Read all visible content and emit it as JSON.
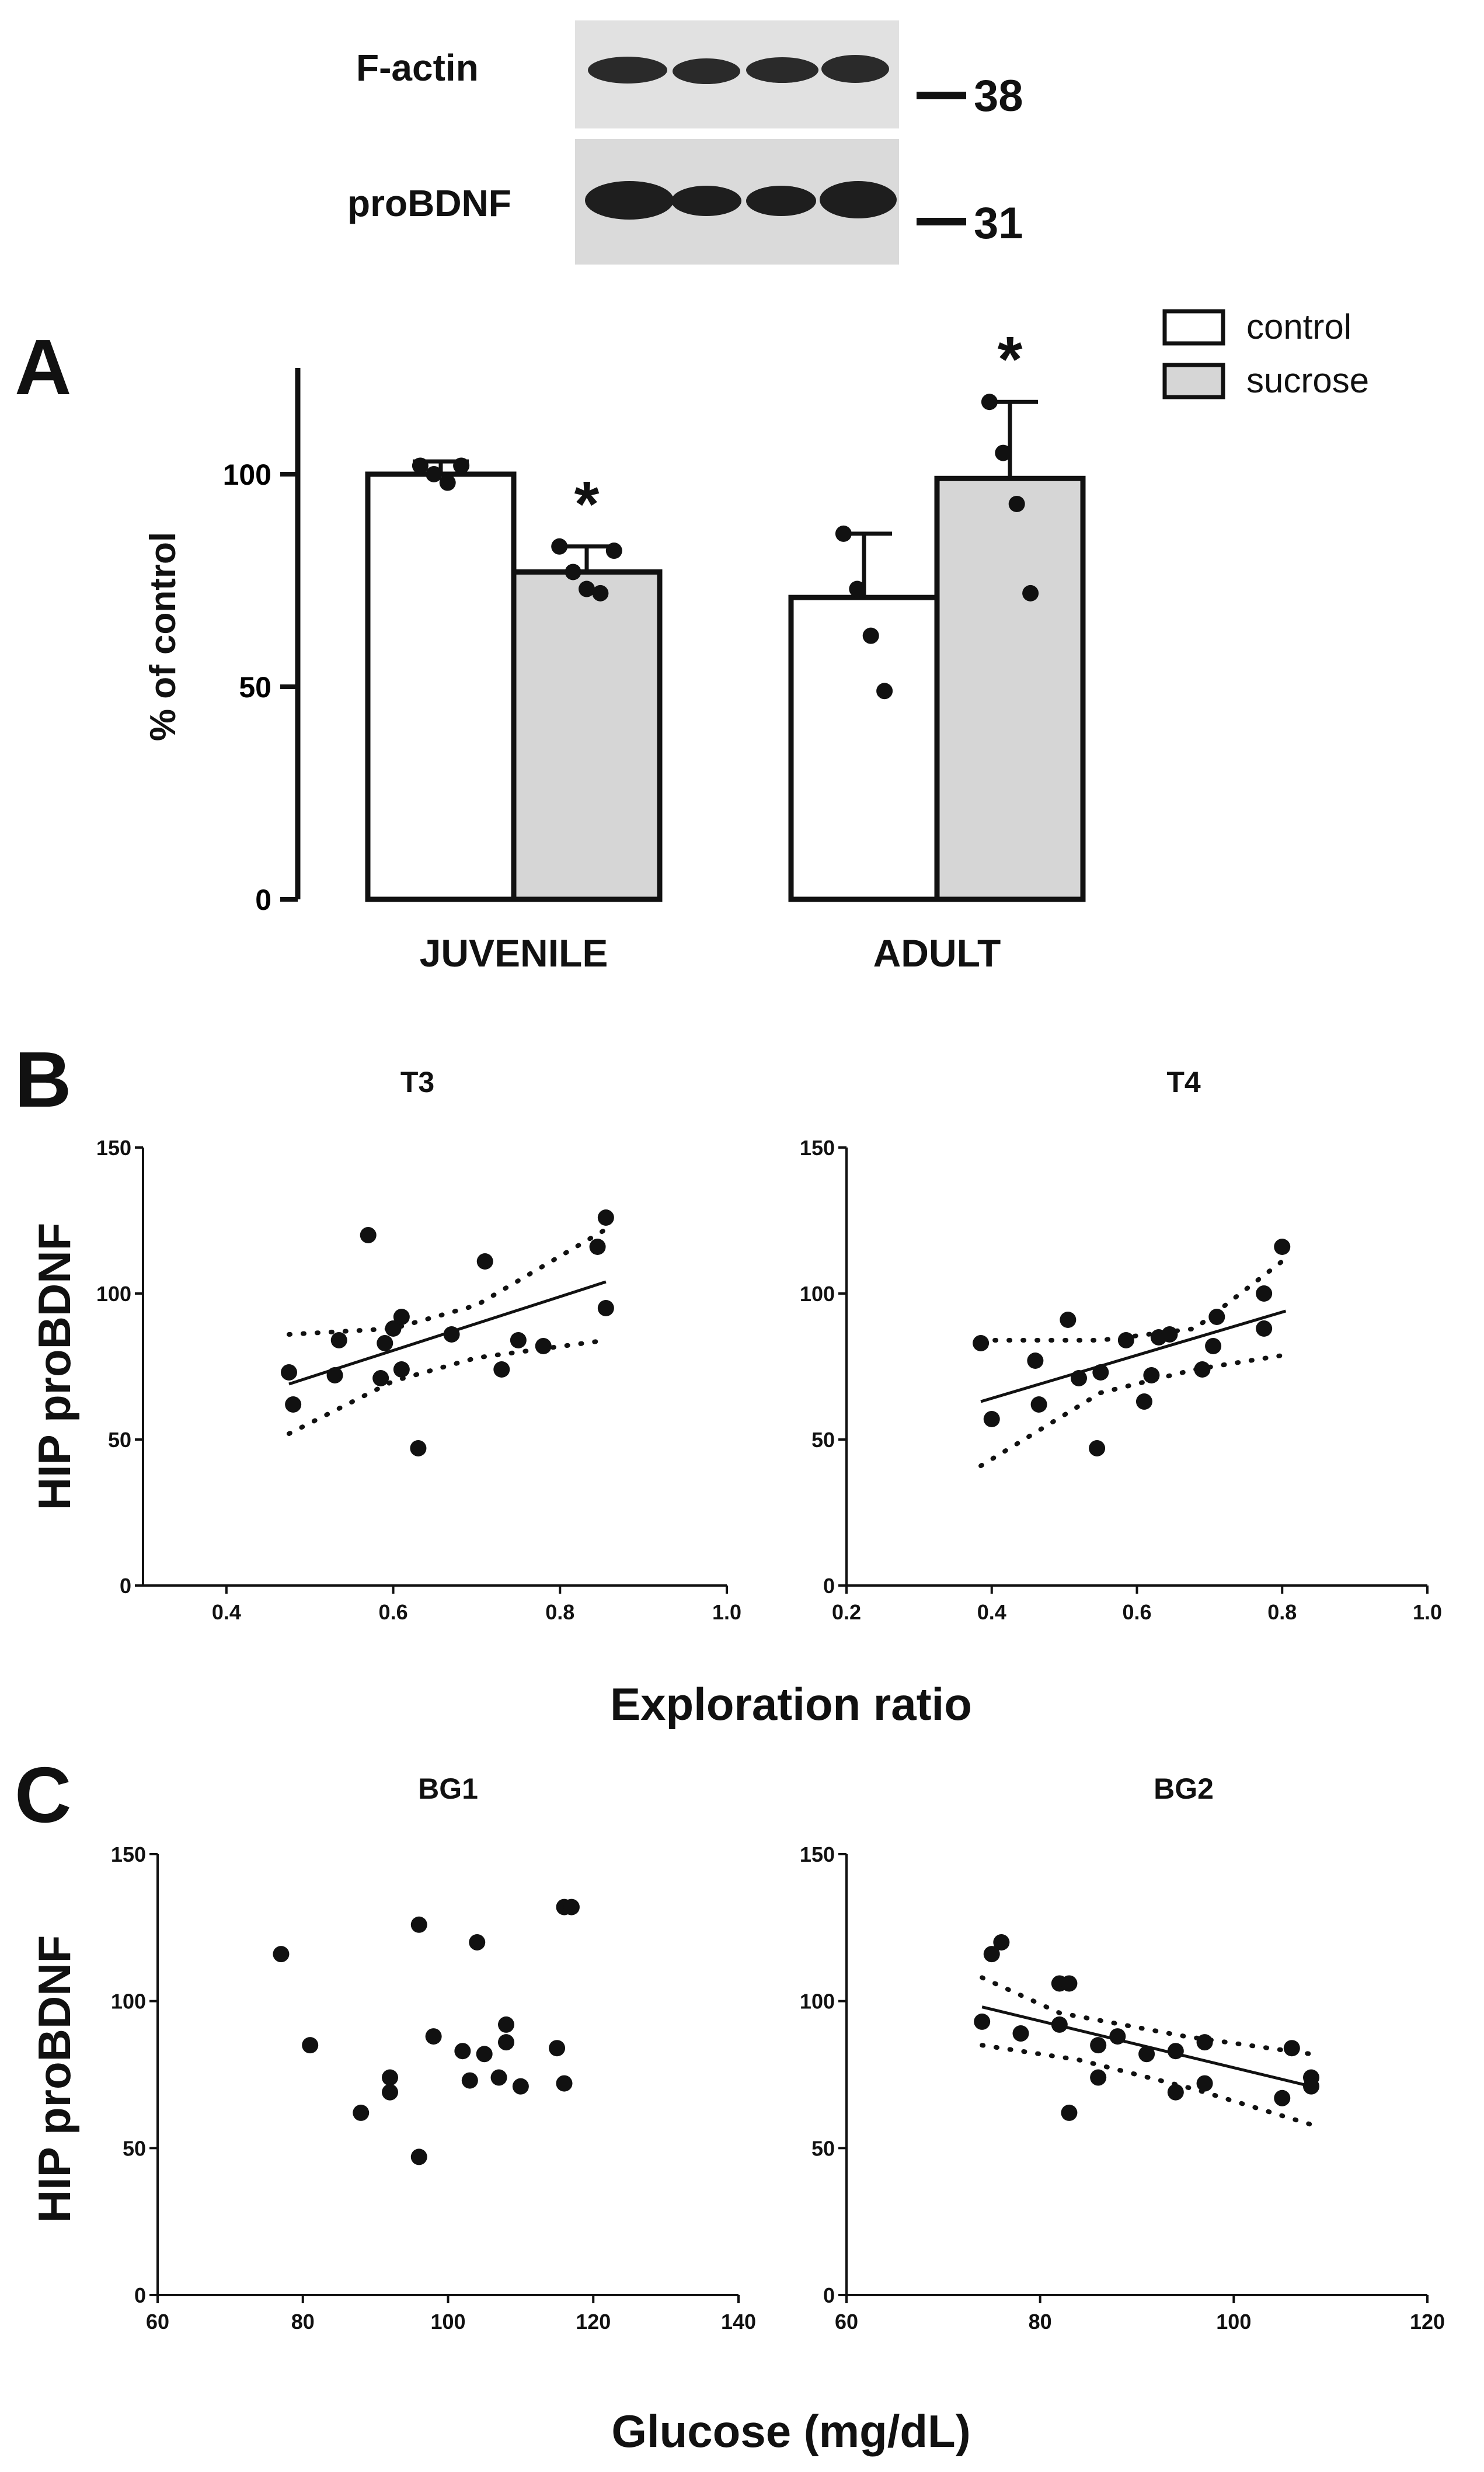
{
  "blot": {
    "bands": [
      {
        "name": "F-actin",
        "marker": "38"
      },
      {
        "name": "proBDNF",
        "marker": "31"
      }
    ]
  },
  "panelA": {
    "letter": "A",
    "ylabel": "% of control",
    "ylim": [
      0,
      125
    ],
    "yticks": [
      "0",
      "50",
      "100"
    ],
    "legend": [
      {
        "label": "control",
        "color": "#ffffff"
      },
      {
        "label": "sucrose",
        "color": "#d6d6d6"
      }
    ],
    "sig_marker": "*"
  },
  "panelB": {
    "letter": "B",
    "ylabel": "HIP proBDNF",
    "xlabel": "Exploration ratio"
  },
  "panelC": {
    "letter": "C",
    "ylabel": "HIP proBDNF",
    "xlabel": "Glucose (mg/dL)"
  },
  "chart_data": [
    {
      "id": "A",
      "type": "bar",
      "title": "",
      "ylabel": "% of control",
      "ylim": [
        0,
        125
      ],
      "categories": [
        "JUVENILE",
        "ADULT"
      ],
      "series": [
        {
          "name": "control",
          "values": [
            100,
            71
          ],
          "errors": [
            3,
            15
          ],
          "points": [
            [
              102,
              100,
              98,
              102
            ],
            [
              86,
              73,
              62,
              49
            ]
          ]
        },
        {
          "name": "sucrose",
          "values": [
            77,
            99
          ],
          "errors": [
            6,
            18
          ],
          "points": [
            [
              83,
              77,
              73,
              72,
              82
            ],
            [
              117,
              105,
              93,
              72
            ]
          ]
        }
      ],
      "significant": [
        false,
        true,
        false,
        true
      ]
    },
    {
      "id": "B-T3",
      "type": "scatter",
      "title": "T3",
      "xlabel": "Exploration ratio",
      "ylabel": "HIP proBDNF",
      "xlim": [
        0.3,
        1.0
      ],
      "ylim": [
        0,
        150
      ],
      "xticks": [
        "0.4",
        "0.6",
        "0.8",
        "1.0"
      ],
      "yticks": [
        "0",
        "50",
        "100",
        "150"
      ],
      "x": [
        0.475,
        0.48,
        0.53,
        0.535,
        0.57,
        0.585,
        0.59,
        0.6,
        0.61,
        0.61,
        0.63,
        0.67,
        0.71,
        0.73,
        0.75,
        0.78,
        0.845,
        0.855,
        0.855
      ],
      "y": [
        73,
        62,
        72,
        84,
        120,
        71,
        83,
        88,
        74,
        92,
        47,
        86,
        111,
        74,
        84,
        82,
        116,
        126,
        95
      ],
      "fit": {
        "x": [
          0.475,
          0.855
        ],
        "y": [
          69,
          104
        ]
      },
      "band_upper": {
        "x": [
          0.475,
          0.6,
          0.7,
          0.855
        ],
        "y": [
          86,
          88,
          96,
          122
        ]
      },
      "band_lower": {
        "x": [
          0.475,
          0.6,
          0.7,
          0.855
        ],
        "y": [
          52,
          70,
          78,
          84
        ]
      }
    },
    {
      "id": "B-T4",
      "type": "scatter",
      "title": "T4",
      "xlabel": "Exploration ratio",
      "ylabel": "HIP proBDNF",
      "xlim": [
        0.2,
        1.0
      ],
      "ylim": [
        0,
        150
      ],
      "xticks": [
        "0.2",
        "0.4",
        "0.6",
        "0.8",
        "1.0"
      ],
      "yticks": [
        "0",
        "50",
        "100",
        "150"
      ],
      "x": [
        0.385,
        0.4,
        0.46,
        0.465,
        0.505,
        0.52,
        0.545,
        0.55,
        0.585,
        0.61,
        0.62,
        0.63,
        0.645,
        0.69,
        0.705,
        0.71,
        0.775,
        0.775,
        0.8
      ],
      "y": [
        83,
        57,
        77,
        62,
        91,
        71,
        47,
        73,
        84,
        63,
        72,
        85,
        86,
        74,
        82,
        92,
        88,
        100,
        116
      ],
      "fit": {
        "x": [
          0.385,
          0.805
        ],
        "y": [
          63,
          94
        ]
      },
      "band_upper": {
        "x": [
          0.385,
          0.55,
          0.68,
          0.805
        ],
        "y": [
          84,
          84,
          88,
          112
        ]
      },
      "band_lower": {
        "x": [
          0.385,
          0.55,
          0.68,
          0.805
        ],
        "y": [
          41,
          66,
          74,
          79
        ]
      }
    },
    {
      "id": "C-BG1",
      "type": "scatter",
      "title": "BG1",
      "xlabel": "Glucose (mg/dL)",
      "ylabel": "HIP proBDNF",
      "xlim": [
        60,
        140
      ],
      "ylim": [
        0,
        150
      ],
      "xticks": [
        "60",
        "80",
        "100",
        "120",
        "140"
      ],
      "yticks": [
        "0",
        "50",
        "100",
        "150"
      ],
      "x": [
        77,
        81,
        88,
        92,
        92,
        96,
        96,
        98,
        102,
        103,
        104,
        105,
        107,
        108,
        108,
        110,
        115,
        116,
        116,
        117
      ],
      "y": [
        116,
        85,
        62,
        74,
        69,
        126,
        47,
        88,
        83,
        73,
        120,
        82,
        74,
        92,
        86,
        71,
        84,
        72,
        132,
        132
      ],
      "fit": null
    },
    {
      "id": "C-BG2",
      "type": "scatter",
      "title": "BG2",
      "xlabel": "Glucose (mg/dL)",
      "ylabel": "HIP proBDNF",
      "xlim": [
        60,
        120
      ],
      "ylim": [
        0,
        150
      ],
      "xticks": [
        "60",
        "80",
        "100",
        "120"
      ],
      "yticks": [
        "0",
        "50",
        "100",
        "150"
      ],
      "x": [
        74,
        75,
        76,
        78,
        82,
        82,
        83,
        83,
        86,
        86,
        88,
        91,
        94,
        94,
        97,
        97,
        105,
        106,
        108,
        108
      ],
      "y": [
        93,
        116,
        120,
        89,
        92,
        106,
        106,
        62,
        85,
        74,
        88,
        82,
        83,
        69,
        72,
        86,
        67,
        84,
        74,
        71
      ],
      "fit": {
        "x": [
          74,
          108
        ],
        "y": [
          98,
          71
        ]
      },
      "band_upper": {
        "x": [
          74,
          82,
          95,
          108
        ],
        "y": [
          108,
          96,
          88,
          82
        ]
      },
      "band_lower": {
        "x": [
          74,
          84,
          96,
          108
        ],
        "y": [
          85,
          80,
          70,
          58
        ]
      }
    }
  ]
}
